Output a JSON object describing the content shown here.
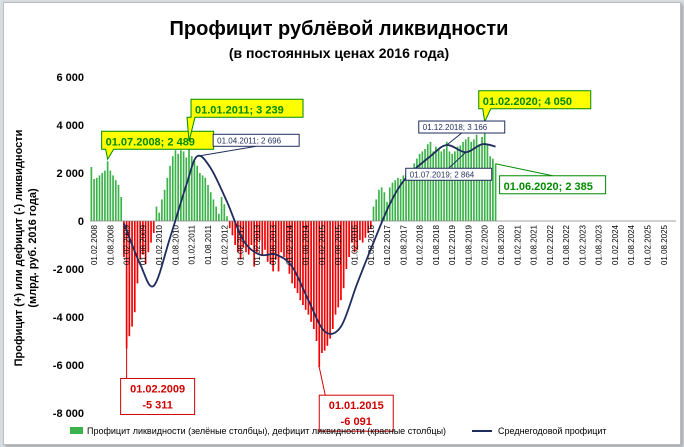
{
  "colors": {
    "surplus": "#3cb34a",
    "deficit": "#f00000",
    "line": "#1f2d5c",
    "callout_fill": "#ffff00",
    "green_text": "#008a00",
    "red_text": "#d00000"
  },
  "chart_data": {
    "type": "bar",
    "title": "Профицит рублёвой ликвидности",
    "subtitle": "(в постоянных ценах 2016 года)",
    "ylabel_line1": "Профицит (+) или дефицит (-) ликвидности",
    "ylabel_line2": "(млрд. руб. 2016 года)",
    "ylim": [
      -8000,
      6000
    ],
    "yticks": [
      6000,
      4000,
      2000,
      0,
      -2000,
      -4000,
      -6000,
      -8000
    ],
    "ytick_labels": [
      "6 000",
      "4 000",
      "2 000",
      "0",
      "-2 000",
      "-4 000",
      "-6 000",
      "-8 000"
    ],
    "x_start": "2008-01",
    "x_end": "2025-12",
    "xtick_labels": [
      "01.02.2008",
      "01.08.2008",
      "01.02.2009",
      "01.08.2009",
      "01.02.2010",
      "01.08.2010",
      "01.02.2011",
      "01.08.2011",
      "01.02.2012",
      "01.08.2012",
      "01.02.2013",
      "01.08.2013",
      "01.02.2014",
      "01.08.2014",
      "01.02.2015",
      "01.08.2015",
      "01.02.2016",
      "01.08.2016",
      "01.02.2017",
      "01.08.2017",
      "01.02.2018",
      "01.08.2018",
      "01.02.2019",
      "01.08.2019",
      "01.02.2020",
      "01.08.2020",
      "01.02.2021",
      "01.08.2021",
      "01.02.2022",
      "01.08.2022",
      "01.02.2023",
      "01.08.2023",
      "01.02.2024",
      "01.08.2024",
      "01.02.2025",
      "01.08.2025"
    ],
    "bar_months": [
      "2008-01",
      "2008-02",
      "2008-03",
      "2008-04",
      "2008-05",
      "2008-06",
      "2008-07",
      "2008-08",
      "2008-09",
      "2008-10",
      "2008-11",
      "2008-12",
      "2009-01",
      "2009-02",
      "2009-03",
      "2009-04",
      "2009-05",
      "2009-06",
      "2009-07",
      "2009-08",
      "2009-09",
      "2009-10",
      "2009-11",
      "2009-12",
      "2010-01",
      "2010-02",
      "2010-03",
      "2010-04",
      "2010-05",
      "2010-06",
      "2010-07",
      "2010-08",
      "2010-09",
      "2010-10",
      "2010-11",
      "2010-12",
      "2011-01",
      "2011-02",
      "2011-03",
      "2011-04",
      "2011-05",
      "2011-06",
      "2011-07",
      "2011-08",
      "2011-09",
      "2011-10",
      "2011-11",
      "2011-12",
      "2012-01",
      "2012-02",
      "2012-03",
      "2012-04",
      "2012-05",
      "2012-06",
      "2012-07",
      "2012-08",
      "2012-09",
      "2012-10",
      "2012-11",
      "2012-12",
      "2013-01",
      "2013-02",
      "2013-03",
      "2013-04",
      "2013-05",
      "2013-06",
      "2013-07",
      "2013-08",
      "2013-09",
      "2013-10",
      "2013-11",
      "2013-12",
      "2014-01",
      "2014-02",
      "2014-03",
      "2014-04",
      "2014-05",
      "2014-06",
      "2014-07",
      "2014-08",
      "2014-09",
      "2014-10",
      "2014-11",
      "2014-12",
      "2015-01",
      "2015-02",
      "2015-03",
      "2015-04",
      "2015-05",
      "2015-06",
      "2015-07",
      "2015-08",
      "2015-09",
      "2015-10",
      "2015-11",
      "2015-12",
      "2016-01",
      "2016-02",
      "2016-03",
      "2016-04",
      "2016-05",
      "2016-06",
      "2016-07",
      "2016-08",
      "2016-09",
      "2016-10",
      "2016-11",
      "2016-12",
      "2017-01",
      "2017-02",
      "2017-03",
      "2017-04",
      "2017-05",
      "2017-06",
      "2017-07",
      "2017-08",
      "2017-09",
      "2017-10",
      "2017-11",
      "2017-12",
      "2018-01",
      "2018-02",
      "2018-03",
      "2018-04",
      "2018-05",
      "2018-06",
      "2018-07",
      "2018-08",
      "2018-09",
      "2018-10",
      "2018-11",
      "2018-12",
      "2019-01",
      "2019-02",
      "2019-03",
      "2019-04",
      "2019-05",
      "2019-06",
      "2019-07",
      "2019-08",
      "2019-09",
      "2019-10",
      "2019-11",
      "2019-12",
      "2020-01",
      "2020-02",
      "2020-03",
      "2020-04",
      "2020-05",
      "2020-06"
    ],
    "bar_values": [
      2250,
      1750,
      1800,
      1900,
      2000,
      2100,
      2489,
      2100,
      1900,
      1700,
      1500,
      1000,
      -1500,
      -5311,
      -4800,
      -4400,
      -3800,
      -2600,
      -1600,
      -1400,
      -1800,
      -1300,
      -900,
      -500,
      600,
      350,
      900,
      1300,
      1800,
      2300,
      2700,
      2950,
      2800,
      2950,
      2900,
      2650,
      3239,
      2700,
      2500,
      2300,
      2000,
      1900,
      1800,
      1500,
      1200,
      900,
      600,
      300,
      1000,
      700,
      200,
      -300,
      -600,
      -1000,
      -1300,
      -1600,
      -1100,
      -1300,
      -1400,
      -1000,
      -1900,
      -1300,
      -800,
      -1400,
      -1200,
      -1700,
      -1800,
      -2100,
      -1600,
      -2100,
      -1300,
      -1500,
      -1700,
      -2200,
      -2600,
      -2800,
      -3000,
      -3300,
      -3500,
      -3700,
      -3900,
      -4200,
      -4500,
      -5000,
      -6091,
      -5500,
      -5400,
      -5200,
      -4900,
      -4500,
      -3900,
      -3600,
      -3300,
      -2800,
      -2000,
      -1500,
      -900,
      -1300,
      -1200,
      -800,
      -900,
      -700,
      -500,
      -300,
      600,
      900,
      1300,
      1400,
      1200,
      800,
      1400,
      1600,
      1700,
      1800,
      1750,
      1900,
      2000,
      1900,
      2200,
      2400,
      2600,
      2800,
      2900,
      3000,
      3200,
      3300,
      2900,
      3100,
      3000,
      2900,
      3000,
      3300,
      2900,
      2800,
      2900,
      3100,
      3150,
      3300,
      3400,
      3500,
      3300,
      3400,
      3600,
      3200,
      3500,
      4050,
      3200,
      2700,
      2600,
      2385
    ],
    "line_label": "Среднегодовой профицит",
    "bars_label": "Профицит ликвидности (зелёные столбцы), дефицит ликвидности (красные столбцы)",
    "line_points": [
      {
        "x": "2009-01",
        "y": -100
      },
      {
        "x": "2009-07",
        "y": -1800
      },
      {
        "x": "2009-12",
        "y": -2700
      },
      {
        "x": "2010-06",
        "y": -700
      },
      {
        "x": "2010-12",
        "y": 1500
      },
      {
        "x": "2011-04",
        "y": 2696
      },
      {
        "x": "2011-09",
        "y": 2200
      },
      {
        "x": "2012-03",
        "y": 800
      },
      {
        "x": "2012-09",
        "y": -800
      },
      {
        "x": "2013-03",
        "y": -1400
      },
      {
        "x": "2013-09",
        "y": -1400
      },
      {
        "x": "2014-03",
        "y": -1900
      },
      {
        "x": "2014-09",
        "y": -3300
      },
      {
        "x": "2015-03",
        "y": -4600
      },
      {
        "x": "2015-09",
        "y": -4400
      },
      {
        "x": "2016-03",
        "y": -2600
      },
      {
        "x": "2016-09",
        "y": -900
      },
      {
        "x": "2017-03",
        "y": 700
      },
      {
        "x": "2017-09",
        "y": 1800
      },
      {
        "x": "2018-06",
        "y": 2700
      },
      {
        "x": "2018-12",
        "y": 3166
      },
      {
        "x": "2019-07",
        "y": 2864
      },
      {
        "x": "2020-01",
        "y": 3200
      },
      {
        "x": "2020-06",
        "y": 3100
      }
    ],
    "annotations": [
      {
        "text": "01.07.2008; 2 489",
        "kind": "green-callout",
        "x": "2008-07",
        "y": 2489
      },
      {
        "text": "01.01.2011; 3 239",
        "kind": "green-callout",
        "x": "2011-01",
        "y": 3239
      },
      {
        "text": "01.02.2020; 4 050",
        "kind": "green-callout",
        "x": "2020-02",
        "y": 4050
      },
      {
        "text": "01.06.2020; 2 385",
        "kind": "green-box",
        "x": "2020-06",
        "y": 2385
      },
      {
        "text": "01.04.2011; 2 696",
        "kind": "line-box",
        "x": "2011-04",
        "y": 2696
      },
      {
        "text": "01.12.2018; 3 166",
        "kind": "line-box",
        "x": "2018-12",
        "y": 3166
      },
      {
        "text": "01.07.2019; 2 864",
        "kind": "line-box",
        "x": "2019-07",
        "y": 2864
      },
      {
        "text_line1": "01.02.2009",
        "text_line2": "-5 311",
        "kind": "red-box",
        "x": "2009-02",
        "y": -5311
      },
      {
        "text_line1": "01.01.2015",
        "text_line2": "-6 091",
        "kind": "red-box",
        "x": "2015-01",
        "y": -6091
      }
    ],
    "grid": false,
    "legend_position": "bottom"
  }
}
